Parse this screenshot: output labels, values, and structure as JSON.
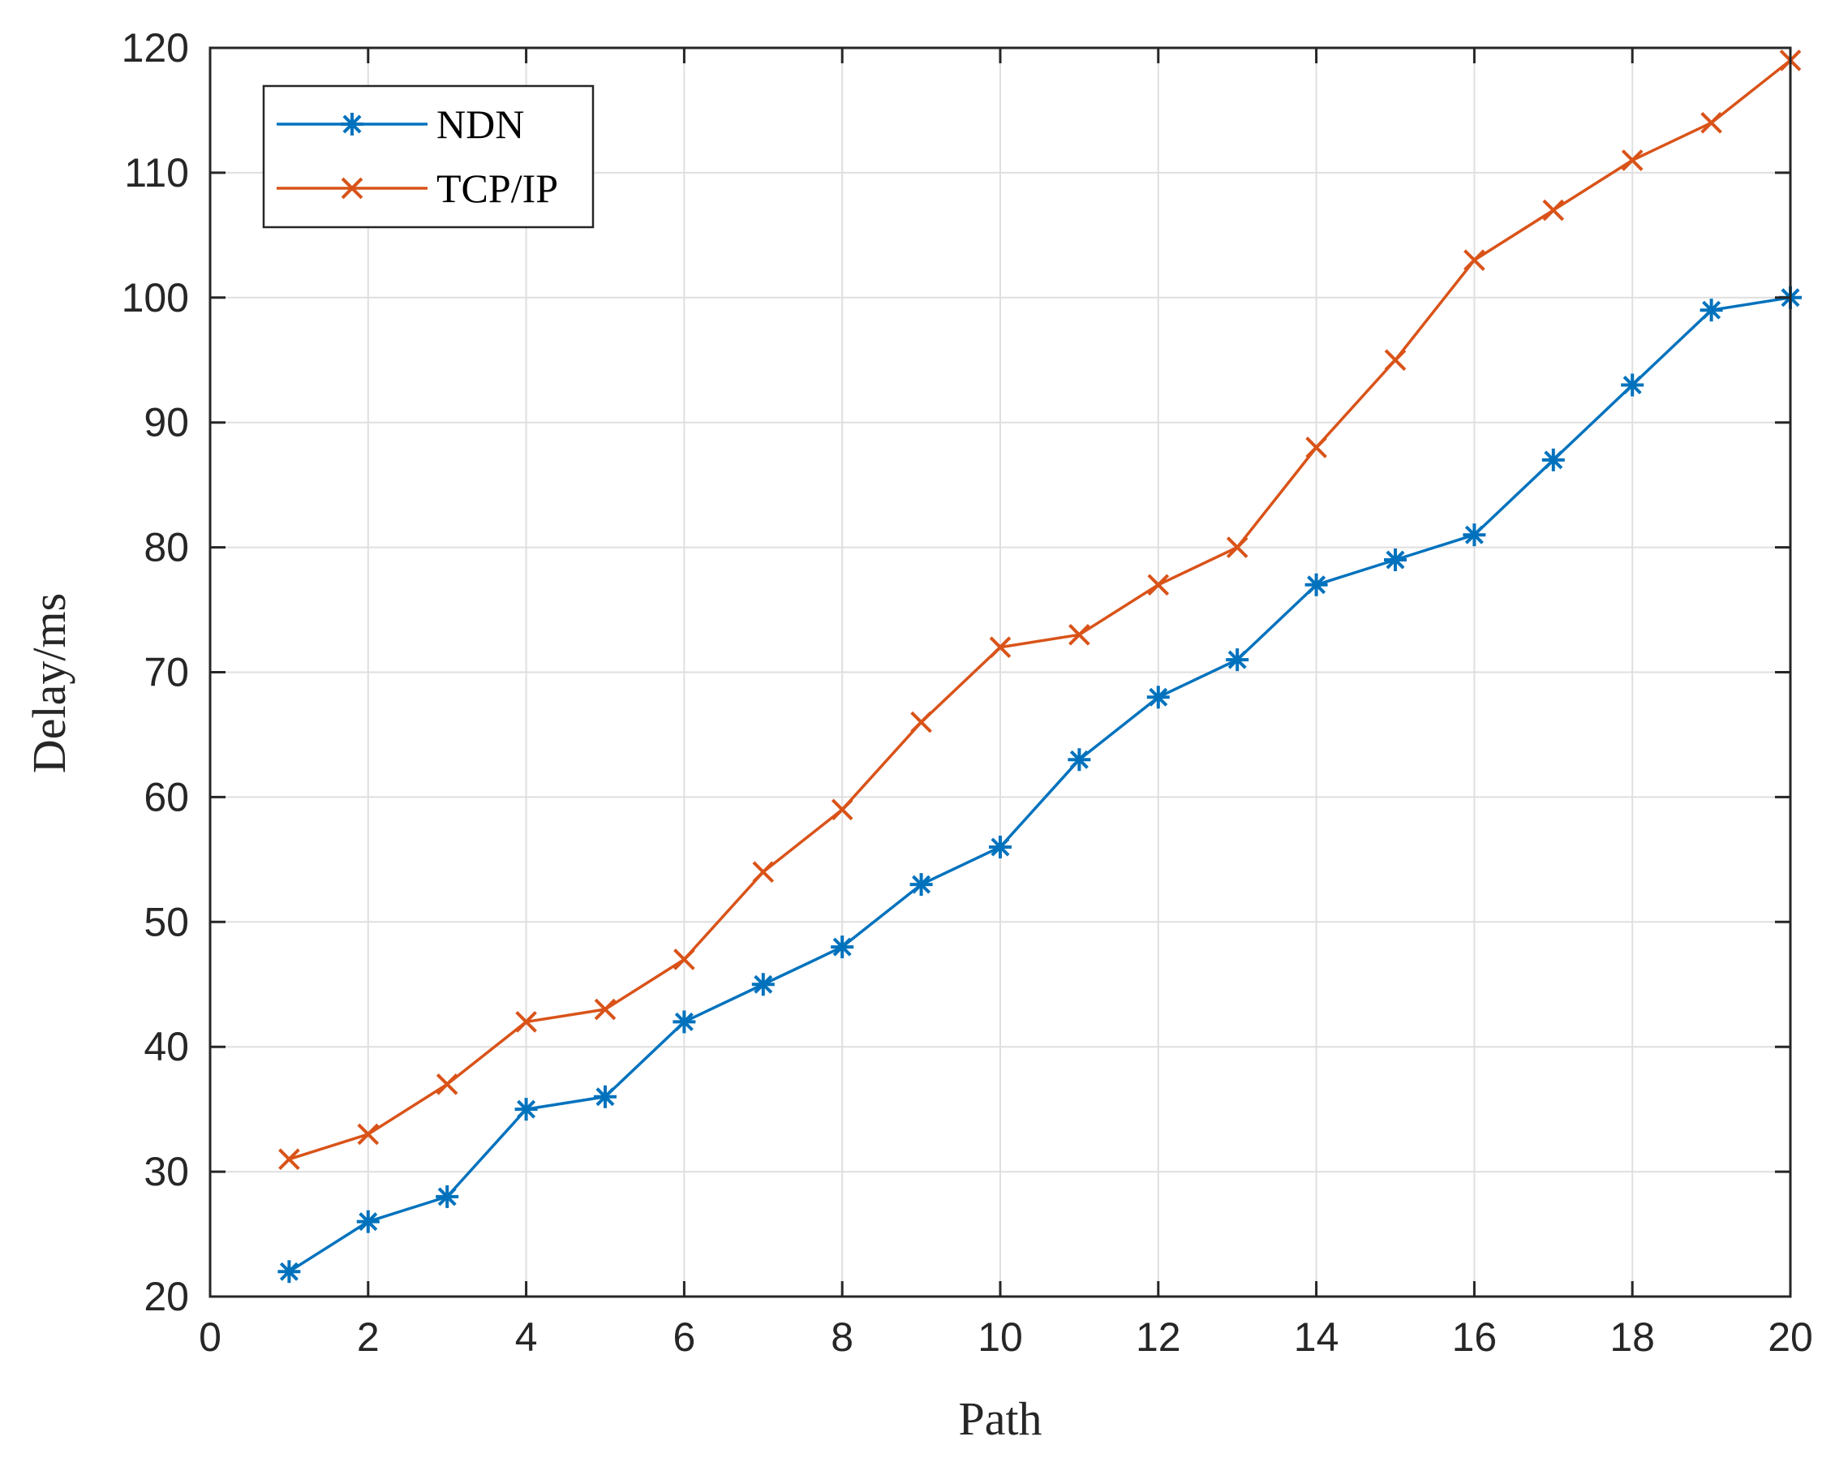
{
  "chart_data": {
    "type": "line",
    "title": "",
    "xlabel": "Path",
    "ylabel": "Delay/ms",
    "xlim": [
      0,
      20
    ],
    "ylim": [
      20,
      120
    ],
    "xticks": [
      0,
      2,
      4,
      6,
      8,
      10,
      12,
      14,
      16,
      18,
      20
    ],
    "yticks": [
      20,
      30,
      40,
      50,
      60,
      70,
      80,
      90,
      100,
      110,
      120
    ],
    "grid": true,
    "legend_position": "top-left",
    "x": [
      1,
      2,
      3,
      4,
      5,
      6,
      7,
      8,
      9,
      10,
      11,
      12,
      13,
      14,
      15,
      16,
      17,
      18,
      19,
      20
    ],
    "series": [
      {
        "name": "NDN",
        "color": "#0072BD",
        "marker": "asterisk",
        "values": [
          22,
          26,
          28,
          35,
          36,
          42,
          45,
          48,
          53,
          56,
          63,
          68,
          71,
          77,
          79,
          81,
          87,
          93,
          99,
          100
        ]
      },
      {
        "name": "TCP/IP",
        "color": "#D95319",
        "marker": "x",
        "values": [
          31,
          33,
          37,
          42,
          43,
          47,
          54,
          59,
          66,
          72,
          73,
          77,
          80,
          88,
          95,
          103,
          107,
          111,
          114,
          119
        ]
      }
    ]
  }
}
